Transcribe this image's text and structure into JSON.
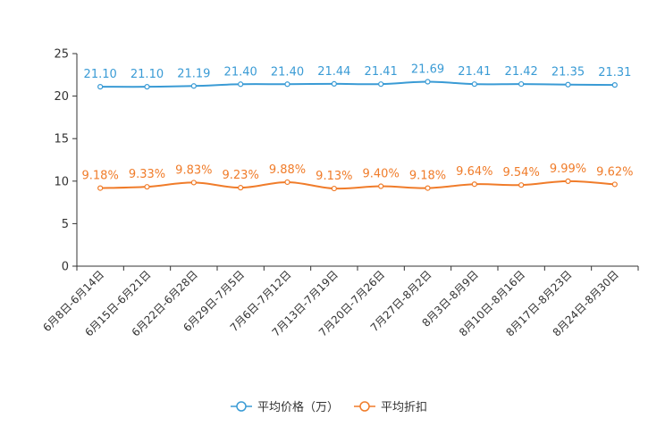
{
  "chart_data": {
    "type": "line",
    "title": "",
    "xlabel": "",
    "ylabel": "",
    "ylim": [
      0,
      25
    ],
    "yticks": [
      0,
      5,
      10,
      15,
      20,
      25
    ],
    "grid": false,
    "legend_position": "bottom-center",
    "categories": [
      "6月8日-6月14日",
      "6月15日-6月21日",
      "6月22日-6月28日",
      "6月29日-7月5日",
      "7月6日-7月12日",
      "7月13日-7月19日",
      "7月20日-7月26日",
      "7月27日-8月2日",
      "8月3日-8月9日",
      "8月10日-8月16日",
      "8月17日-8月23日",
      "8月24日-8月30日"
    ],
    "series": [
      {
        "name": "平均价格（万）",
        "color": "#3a9bd5",
        "values": [
          21.1,
          21.1,
          21.19,
          21.4,
          21.4,
          21.44,
          21.41,
          21.69,
          21.41,
          21.42,
          21.35,
          21.31
        ],
        "labels": [
          "21.10",
          "21.10",
          "21.19",
          "21.40",
          "21.40",
          "21.44",
          "21.41",
          "21.69",
          "21.41",
          "21.42",
          "21.35",
          "21.31"
        ]
      },
      {
        "name": "平均折扣",
        "color": "#f07c2a",
        "values": [
          9.18,
          9.33,
          9.83,
          9.23,
          9.88,
          9.13,
          9.4,
          9.18,
          9.64,
          9.54,
          9.99,
          9.62
        ],
        "labels": [
          "9.18%",
          "9.33%",
          "9.83%",
          "9.23%",
          "9.88%",
          "9.13%",
          "9.40%",
          "9.18%",
          "9.64%",
          "9.54%",
          "9.99%",
          "9.62%"
        ]
      }
    ]
  }
}
